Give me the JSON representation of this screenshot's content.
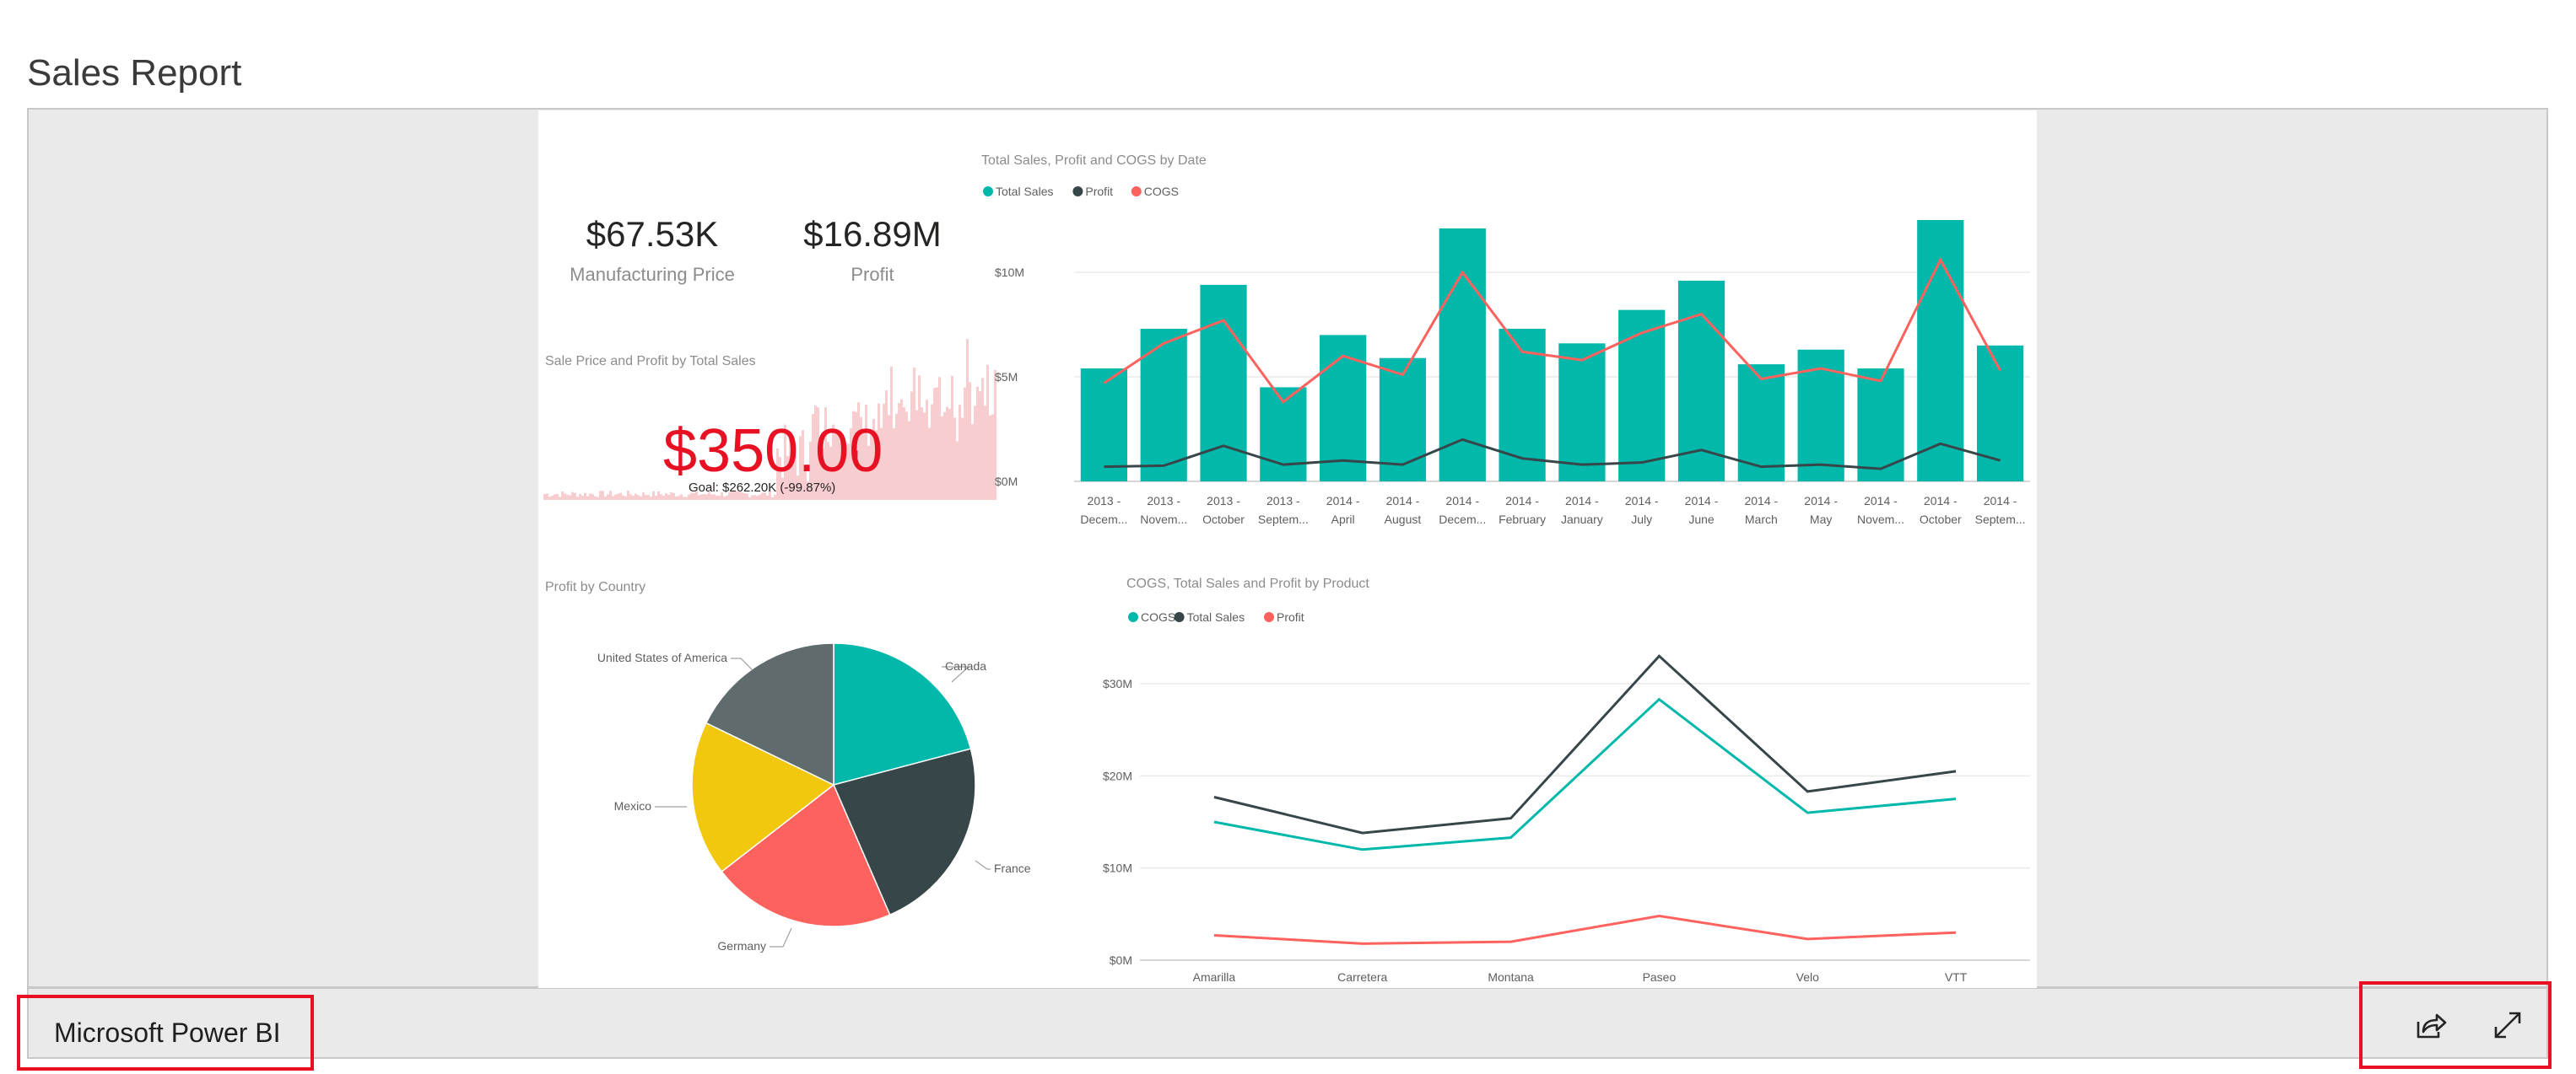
{
  "page": {
    "title": "Sales Report"
  },
  "footer": {
    "brand": "Microsoft Power BI",
    "share_icon": "share-icon",
    "fullscreen_icon": "fullscreen-icon"
  },
  "colors": {
    "teal": "#01b8aa",
    "dark": "#374649",
    "red": "#fd625e",
    "yellow": "#f2c80f",
    "gray": "#5f6b6d",
    "kpi_red": "#e81123",
    "highlight": "#e81123"
  },
  "cards": [
    {
      "value": "$67.53K",
      "label": "Manufacturing Price"
    },
    {
      "value": "$16.89M",
      "label": "Profit"
    }
  ],
  "kpi": {
    "title": "Sale Price and Profit by Total Sales",
    "value": "$350.00",
    "indicator": "!",
    "goal": "Goal: $262.20K (-99.87%)"
  },
  "chart_data": [
    {
      "type": "bar",
      "title": "Total Sales, Profit and COGS by Date",
      "legend": [
        "Total Sales",
        "Profit",
        "COGS"
      ],
      "categories": [
        [
          "2013 -",
          "Decem..."
        ],
        [
          "2013 -",
          "Novem..."
        ],
        [
          "2013 -",
          "October"
        ],
        [
          "2013 -",
          "Septem..."
        ],
        [
          "2014 -",
          "April"
        ],
        [
          "2014 -",
          "August"
        ],
        [
          "2014 -",
          "Decem..."
        ],
        [
          "2014 -",
          "February"
        ],
        [
          "2014 -",
          "January"
        ],
        [
          "2014 -",
          "July"
        ],
        [
          "2014 -",
          "June"
        ],
        [
          "2014 -",
          "March"
        ],
        [
          "2014 -",
          "May"
        ],
        [
          "2014 -",
          "Novem..."
        ],
        [
          "2014 -",
          "October"
        ],
        [
          "2014 -",
          "Septem..."
        ]
      ],
      "y_ticks": [
        "$0M",
        "$5M",
        "$10M"
      ],
      "ylim": [
        0,
        12.5
      ],
      "series": [
        {
          "name": "Total Sales",
          "kind": "bar",
          "values": [
            5.4,
            7.3,
            9.4,
            4.5,
            7.0,
            5.9,
            12.1,
            7.3,
            6.6,
            8.2,
            9.6,
            5.6,
            6.3,
            5.4,
            12.5,
            6.5
          ]
        },
        {
          "name": "Profit",
          "kind": "line",
          "values": [
            0.7,
            0.75,
            1.7,
            0.8,
            1.0,
            0.8,
            2.0,
            1.1,
            0.8,
            0.9,
            1.5,
            0.7,
            0.8,
            0.6,
            1.8,
            1.0
          ]
        },
        {
          "name": "COGS",
          "kind": "line",
          "values": [
            4.7,
            6.6,
            7.7,
            3.8,
            6.0,
            5.1,
            10.0,
            6.2,
            5.8,
            7.1,
            8.0,
            4.9,
            5.4,
            4.8,
            10.6,
            5.3
          ]
        }
      ]
    },
    {
      "type": "pie",
      "title": "Profit by Country",
      "labels": [
        "Canada",
        "France",
        "Germany",
        "Mexico",
        "United States of America"
      ],
      "values": [
        20.9,
        22.6,
        21.0,
        17.7,
        17.8
      ]
    },
    {
      "type": "line",
      "title": "COGS, Total Sales and Profit by Product",
      "legend": [
        "COGS",
        "Total Sales",
        "Profit"
      ],
      "categories": [
        "Amarilla",
        "Carretera",
        "Montana",
        "Paseo",
        "Velo",
        "VTT"
      ],
      "y_ticks": [
        "$0M",
        "$10M",
        "$20M",
        "$30M"
      ],
      "ylim": [
        0,
        30
      ],
      "series": [
        {
          "name": "COGS",
          "values": [
            15.0,
            12.0,
            13.3,
            28.3,
            16.0,
            17.5
          ]
        },
        {
          "name": "Total Sales",
          "values": [
            17.7,
            13.8,
            15.4,
            33.0,
            18.3,
            20.5
          ]
        },
        {
          "name": "Profit",
          "values": [
            2.7,
            1.8,
            2.0,
            4.8,
            2.3,
            3.0
          ]
        }
      ]
    }
  ]
}
